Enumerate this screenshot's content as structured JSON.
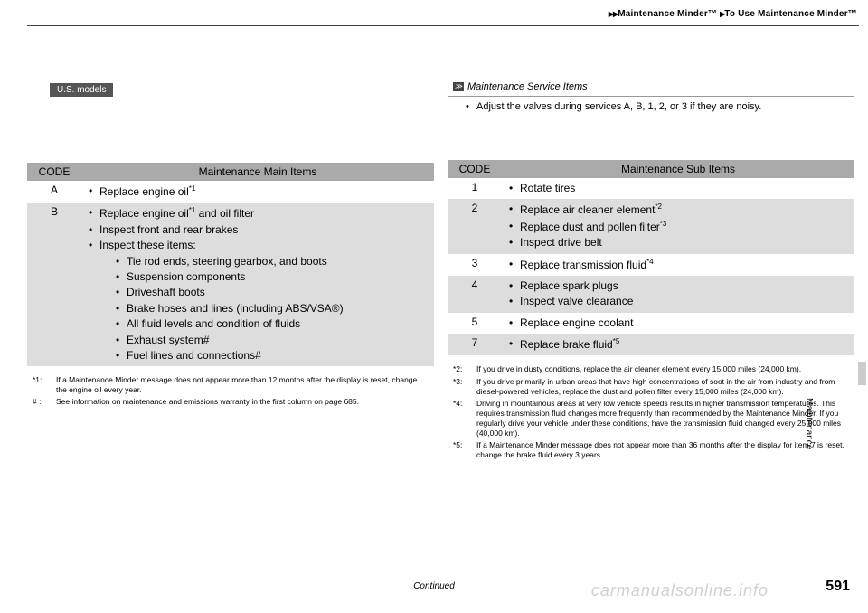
{
  "breadcrumb": {
    "section": "Maintenance Minder™",
    "page": "To Use Maintenance Minder™"
  },
  "badge": "U.S. models",
  "main_table": {
    "headers": {
      "code": "CODE",
      "items": "Maintenance Main Items"
    },
    "rows": [
      {
        "code": "A",
        "shade": false,
        "items": [
          "Replace engine oil*1"
        ]
      },
      {
        "code": "B",
        "shade": true,
        "items": [
          "Replace engine oil*1 and oil filter",
          "Inspect front and rear brakes",
          {
            "text": "Inspect these items:",
            "sub": [
              "Tie rod ends, steering gearbox, and boots",
              "Suspension components",
              "Driveshaft boots",
              "Brake hoses and lines (including ABS/VSA®)",
              "All fluid levels and condition of fluids",
              "Exhaust system#",
              "Fuel lines and connections#"
            ]
          }
        ]
      }
    ]
  },
  "main_footnotes": [
    {
      "lbl": "*1:",
      "txt": "If a Maintenance Minder message does not appear more than 12 months after the display is reset, change the engine oil every year."
    },
    {
      "lbl": "# :",
      "txt": "See information on maintenance and emissions warranty in the first column on page 685."
    }
  ],
  "info_box": {
    "title": "Maintenance Service Items",
    "bullets": [
      "Adjust the valves during services A, B, 1, 2, or 3 if they are noisy."
    ]
  },
  "sub_table": {
    "headers": {
      "code": "CODE",
      "items": "Maintenance Sub Items"
    },
    "rows": [
      {
        "code": "1",
        "shade": false,
        "items": [
          "Rotate tires"
        ]
      },
      {
        "code": "2",
        "shade": true,
        "items": [
          "Replace air cleaner element*2",
          "Replace dust and pollen filter*3",
          "Inspect drive belt"
        ]
      },
      {
        "code": "3",
        "shade": false,
        "items": [
          "Replace transmission fluid*4"
        ]
      },
      {
        "code": "4",
        "shade": true,
        "items": [
          "Replace spark plugs",
          "Inspect valve clearance"
        ]
      },
      {
        "code": "5",
        "shade": false,
        "items": [
          "Replace engine coolant"
        ]
      },
      {
        "code": "7",
        "shade": true,
        "items": [
          "Replace brake fluid*5"
        ]
      }
    ]
  },
  "sub_footnotes": [
    {
      "lbl": "*2:",
      "txt": "If you drive in dusty conditions, replace the air cleaner element every 15,000 miles (24,000 km)."
    },
    {
      "lbl": "*3:",
      "txt": "If you drive primarily in urban areas that have high concentrations of soot in the air from industry and from diesel-powered vehicles, replace the dust and pollen filter every 15,000 miles (24,000 km)."
    },
    {
      "lbl": "*4:",
      "txt": "Driving in mountainous areas at very low vehicle speeds results in higher transmission temperatures. This requires transmission fluid changes more frequently than recommended by the Maintenance Minder. If you regularly drive your vehicle under these conditions, have the transmission fluid changed every 25,000 miles (40,000 km)."
    },
    {
      "lbl": "*5:",
      "txt": "If a Maintenance Minder message does not appear more than 36 months after the display for item 7 is reset, change the brake fluid every 3 years."
    }
  ],
  "side_label": "Maintenance",
  "continued": "Continued",
  "page_number": "591",
  "watermark": "carmanualsonline.info"
}
